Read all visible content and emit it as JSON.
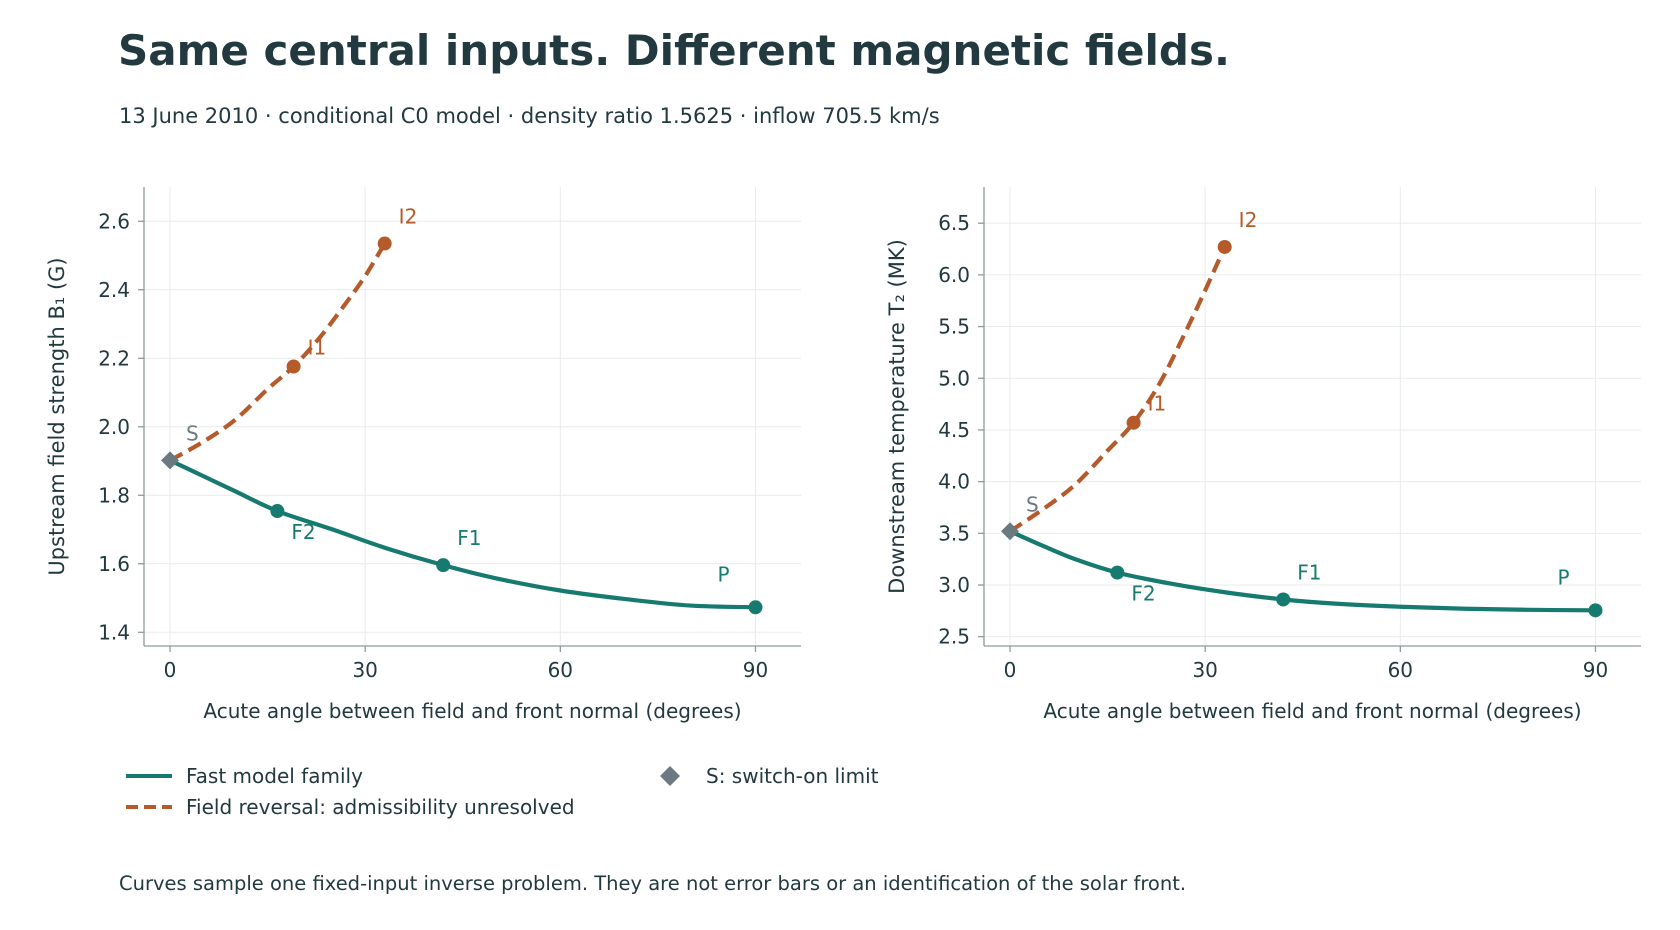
{
  "title": "Same central inputs. Different magnetic fields.",
  "subtitle": "13 June 2010 · conditional C0 model · density ratio 1.5625 · inflow 705.5 km/s",
  "footnote": "Curves sample one fixed-input inverse problem. They are not error bars or an identification of the solar front.",
  "colors": {
    "fast": "#167a70",
    "reversal": "#b55a2b",
    "switch": "#6b7980",
    "grid": "#e9ecec",
    "axis": "#8e9a9c",
    "text": "#22393f"
  },
  "legend": {
    "fast": "Fast model family",
    "reversal": "Field reversal: admissibility unresolved",
    "switch_on": "S: switch-on limit"
  },
  "chart_data": [
    {
      "type": "line",
      "xlabel": "Acute angle between field and front normal (degrees)",
      "ylabel": "Upstream field strength B₁ (G)",
      "xlim": [
        -4,
        97
      ],
      "ylim": [
        1.36,
        2.7
      ],
      "xticks": [
        0,
        30,
        60,
        90
      ],
      "yticks": [
        1.4,
        1.6,
        1.8,
        2.0,
        2.2,
        2.4,
        2.6
      ],
      "ytick_labels": [
        "1.4",
        "1.6",
        "1.8",
        "2.0",
        "2.2",
        "2.4",
        "2.6"
      ],
      "grid": true,
      "series": [
        {
          "key": "fast",
          "name": "Fast model family",
          "x": [
            0,
            5,
            10,
            16.5,
            25,
            33,
            42,
            50,
            60,
            70,
            80,
            90
          ],
          "y": [
            1.902,
            1.857,
            1.812,
            1.754,
            1.7,
            1.647,
            1.596,
            1.558,
            1.522,
            1.497,
            1.478,
            1.473
          ]
        },
        {
          "key": "reversal",
          "name": "Field reversal: admissibility unresolved",
          "x": [
            0,
            5,
            10,
            15,
            19,
            23,
            27,
            30,
            33
          ],
          "y": [
            1.902,
            1.955,
            2.02,
            2.11,
            2.176,
            2.26,
            2.36,
            2.44,
            2.535
          ]
        }
      ],
      "points": [
        {
          "label": "S",
          "kind": "switch",
          "x": 0,
          "y": 1.902
        },
        {
          "label": "F2",
          "kind": "fast",
          "x": 16.5,
          "y": 1.754
        },
        {
          "label": "F1",
          "kind": "fast",
          "x": 42,
          "y": 1.596
        },
        {
          "label": "P",
          "kind": "fast",
          "x": 90,
          "y": 1.473
        },
        {
          "label": "I1",
          "kind": "reversal",
          "x": 19,
          "y": 2.176
        },
        {
          "label": "I2",
          "kind": "reversal",
          "x": 33,
          "y": 2.535
        }
      ]
    },
    {
      "type": "line",
      "xlabel": "Acute angle between field and front normal (degrees)",
      "ylabel": "Downstream temperature T₂ (MK)",
      "xlim": [
        -4,
        97
      ],
      "ylim": [
        2.41,
        6.85
      ],
      "xticks": [
        0,
        30,
        60,
        90
      ],
      "yticks": [
        2.5,
        3.0,
        3.5,
        4.0,
        4.5,
        5.0,
        5.5,
        6.0,
        6.5
      ],
      "ytick_labels": [
        "2.5",
        "3.0",
        "3.5",
        "4.0",
        "4.5",
        "5.0",
        "5.5",
        "6.0",
        "6.5"
      ],
      "grid": true,
      "series": [
        {
          "key": "fast",
          "name": "Fast model family",
          "x": [
            0,
            5,
            10,
            16.5,
            25,
            33,
            42,
            50,
            60,
            70,
            80,
            90
          ],
          "y": [
            3.52,
            3.38,
            3.25,
            3.12,
            3.01,
            2.93,
            2.86,
            2.82,
            2.79,
            2.77,
            2.76,
            2.755
          ]
        },
        {
          "key": "reversal",
          "name": "Field reversal: admissibility unresolved",
          "x": [
            0,
            5,
            10,
            15,
            19,
            23,
            27,
            30,
            33
          ],
          "y": [
            3.52,
            3.73,
            3.97,
            4.3,
            4.57,
            4.95,
            5.45,
            5.85,
            6.27
          ]
        }
      ],
      "points": [
        {
          "label": "S",
          "kind": "switch",
          "x": 0,
          "y": 3.52
        },
        {
          "label": "F2",
          "kind": "fast",
          "x": 16.5,
          "y": 3.12
        },
        {
          "label": "F1",
          "kind": "fast",
          "x": 42,
          "y": 2.86
        },
        {
          "label": "P",
          "kind": "fast",
          "x": 90,
          "y": 2.755
        },
        {
          "label": "I1",
          "kind": "reversal",
          "x": 19,
          "y": 4.57
        },
        {
          "label": "I2",
          "kind": "reversal",
          "x": 33,
          "y": 6.27
        }
      ]
    }
  ]
}
